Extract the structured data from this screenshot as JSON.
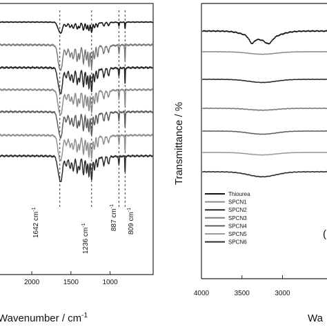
{
  "chart_data": [
    {
      "type": "line",
      "panel": "left",
      "xlabel": "Wavenumber / cm",
      "xlabel_superscript": "-1",
      "xlim": [
        2450,
        450
      ],
      "x_ticks": [
        2000,
        1500,
        1000
      ],
      "x_tick_labels": [
        "2000",
        "1500",
        "1000"
      ],
      "reversed_x": true,
      "annotations": [
        "1642 cm",
        "1236 cm",
        "887 cm",
        "809 cm"
      ],
      "annotation_superscript": "-1",
      "reference_lines": [
        1642,
        1236,
        887,
        809
      ],
      "series": [
        {
          "name": "Thiourea",
          "offset": 0
        },
        {
          "name": "SPCN1",
          "offset": 1
        },
        {
          "name": "SPCN2",
          "offset": 2
        },
        {
          "name": "SPCN3",
          "offset": 3
        },
        {
          "name": "SPCN4",
          "offset": 4
        },
        {
          "name": "SPCN5",
          "offset": 5
        },
        {
          "name": "SPCN6",
          "offset": 6
        }
      ]
    },
    {
      "type": "line",
      "panel": "right",
      "ylabel": "Transmittance / %",
      "xlabel": "Wa",
      "xlim": [
        4000,
        2400
      ],
      "x_ticks": [
        4000,
        3500,
        3000
      ],
      "x_tick_labels": [
        "4000",
        "3500",
        "3000"
      ],
      "reversed_x": true,
      "panel_label": "(",
      "legend": {
        "placement": "bottom-left",
        "entries": [
          "Thiourea",
          "SPCN1",
          "SPCN2",
          "SPCN3",
          "SPCN4",
          "SPCN5",
          "SPCN6"
        ]
      }
    }
  ]
}
